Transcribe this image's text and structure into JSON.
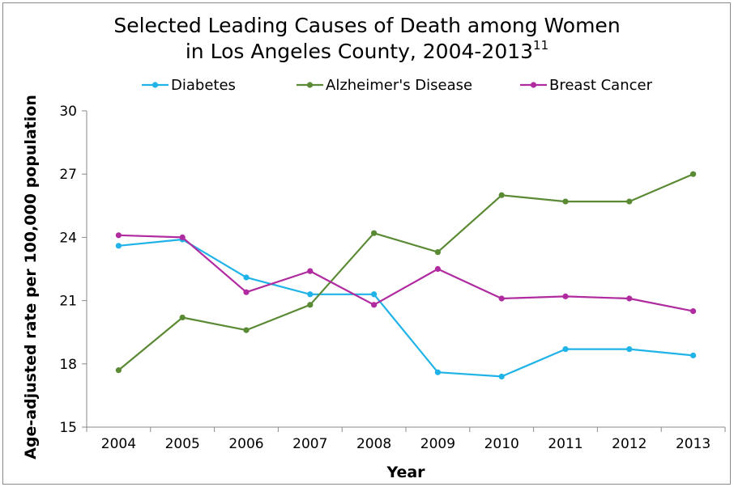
{
  "chart_data": {
    "type": "line",
    "title_line1": "Selected Leading Causes of Death among Women",
    "title_line2": "in Los Angeles County, 2004-2013",
    "title_superscript": "11",
    "xlabel": "Year",
    "ylabel": "Age-adjusted rate per 100,000 population",
    "x": [
      "2004",
      "2005",
      "2006",
      "2007",
      "2008",
      "2009",
      "2010",
      "2011",
      "2012",
      "2013"
    ],
    "ylim": [
      15,
      30
    ],
    "yticks": [
      "15",
      "18",
      "21",
      "24",
      "27",
      "30"
    ],
    "legend_position": "top",
    "grid": false,
    "series": [
      {
        "name": "Diabetes",
        "color": "#1fb3e8",
        "values": [
          23.6,
          23.9,
          22.1,
          21.3,
          21.3,
          17.6,
          17.4,
          18.7,
          18.7,
          18.4
        ]
      },
      {
        "name": "Alzheimer's Disease",
        "color": "#5b8a35",
        "values": [
          17.7,
          20.2,
          19.6,
          20.8,
          24.2,
          23.3,
          26.0,
          25.7,
          25.7,
          27.0
        ]
      },
      {
        "name": "Breast Cancer",
        "color": "#b02aa0",
        "values": [
          24.1,
          24.0,
          21.4,
          22.4,
          20.8,
          22.5,
          21.1,
          21.2,
          21.1,
          20.5
        ]
      }
    ]
  }
}
